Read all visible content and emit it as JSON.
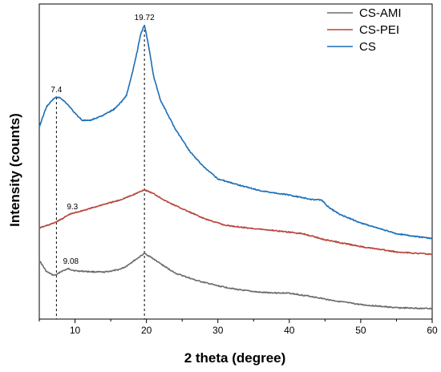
{
  "chart_data": {
    "type": "line",
    "title": "",
    "xlabel": "2 theta (degree)",
    "ylabel": "Intensity (counts)",
    "xlim": [
      5,
      60
    ],
    "ylim": [
      0,
      100
    ],
    "xticks": [
      10,
      20,
      30,
      40,
      50,
      60
    ],
    "yticks_visible": false,
    "grid": false,
    "legend_position": "top-right",
    "series": [
      {
        "name": "CS-AMI",
        "color": "#6b6b6b",
        "x": [
          5,
          6,
          7,
          7.5,
          8,
          9.08,
          10,
          12,
          14,
          16,
          17,
          18,
          19,
          19.7,
          20.5,
          22,
          24,
          27,
          30,
          33,
          36,
          40,
          43,
          46,
          50,
          55,
          60
        ],
        "y": [
          17.3,
          13.3,
          12.0,
          12.3,
          13.3,
          14.3,
          13.6,
          13.3,
          13.1,
          13.9,
          14.9,
          16.7,
          18.4,
          19.7,
          18.6,
          16.0,
          12.8,
          10.2,
          8.3,
          6.9,
          6.0,
          5.7,
          4.6,
          3.2,
          1.7,
          0.6,
          0.3
        ]
      },
      {
        "name": "CS-PEI",
        "color": "#b5453a",
        "x": [
          5,
          7,
          8,
          9.3,
          10,
          12,
          14,
          16,
          18,
          19.7,
          21,
          23,
          25,
          28,
          31,
          34,
          38,
          42,
          45,
          50,
          55,
          60
        ],
        "y": [
          28.6,
          30.3,
          31.6,
          33.5,
          34.0,
          35.4,
          36.9,
          38.2,
          40.1,
          42.1,
          40.7,
          37.7,
          35.4,
          32.0,
          29.6,
          28.7,
          27.7,
          26.6,
          24.5,
          22.1,
          20.2,
          19.4
        ]
      },
      {
        "name": "CS",
        "color": "#1a6eb8",
        "x": [
          5,
          6,
          7,
          7.4,
          8,
          9,
          10,
          11,
          12,
          14,
          15.5,
          16.5,
          17.2,
          18,
          18.7,
          19.2,
          19.72,
          20.2,
          21,
          22,
          24,
          26,
          28,
          30,
          33,
          36,
          40,
          43,
          44.5,
          45.5,
          47,
          50,
          55,
          60
        ],
        "y": [
          64.1,
          71.2,
          74.0,
          74.6,
          74.3,
          72.0,
          68.9,
          66.5,
          66.3,
          68.3,
          70.4,
          73.0,
          75.2,
          82.8,
          90.7,
          96.7,
          100.0,
          94.2,
          82.0,
          73.3,
          63.6,
          55.8,
          50.1,
          45.9,
          43.7,
          41.7,
          40.2,
          38.7,
          38.5,
          35.9,
          33.5,
          30.4,
          26.6,
          24.9
        ]
      }
    ],
    "annotations": [
      {
        "text": "7.4",
        "x": 7.4,
        "y": 74.6,
        "dashed_line": true
      },
      {
        "text": "19.72",
        "x": 19.72,
        "y": 100.0,
        "dashed_line": true
      },
      {
        "text": "9.3",
        "x": 9.3,
        "y": 33.5,
        "dashed_line": false
      },
      {
        "text": "9.08",
        "x": 9.08,
        "y": 14.3,
        "dashed_line": false
      }
    ]
  }
}
